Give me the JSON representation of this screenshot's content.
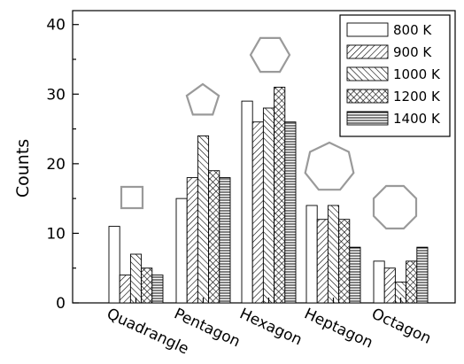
{
  "chart_data": {
    "type": "bar",
    "title": "",
    "xlabel": "",
    "ylabel": "Counts",
    "ylim": [
      0,
      42
    ],
    "yticks": [
      0,
      10,
      20,
      30,
      40
    ],
    "categories": [
      "Quadrangle",
      "Pentagon",
      "Hexagon",
      "Heptagon",
      "Octagon"
    ],
    "series": [
      {
        "name": "800 K",
        "pattern": "empty",
        "values": [
          11,
          15,
          29,
          14,
          6
        ]
      },
      {
        "name": "900 K",
        "pattern": "hatch-right",
        "values": [
          4,
          18,
          26,
          12,
          5
        ]
      },
      {
        "name": "1000 K",
        "pattern": "hatch-left",
        "values": [
          7,
          24,
          28,
          14,
          3
        ]
      },
      {
        "name": "1200 K",
        "pattern": "crosshatch",
        "values": [
          5,
          19,
          31,
          12,
          6
        ]
      },
      {
        "name": "1400 K",
        "pattern": "horizontal",
        "values": [
          4,
          18,
          26,
          8,
          8
        ]
      }
    ],
    "legend_position": "top-right",
    "grid": false,
    "annotations": [
      "square-icon",
      "pentagon-icon",
      "hexagon-icon",
      "heptagon-icon",
      "octagon-icon"
    ],
    "colors": {
      "bars": "#000000",
      "shapes": "#9a9a9a",
      "background": "#ffffff"
    }
  }
}
